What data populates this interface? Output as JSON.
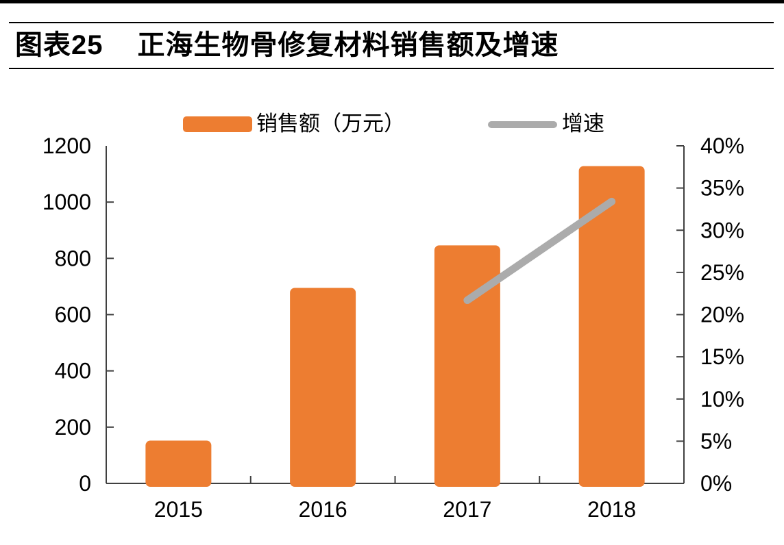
{
  "header": {
    "tag": "图表25",
    "title": "正海生物骨修复材料销售额及增速"
  },
  "legend": {
    "items": [
      {
        "label": "销售额（万元）",
        "type": "bar"
      },
      {
        "label": "增速",
        "type": "line"
      }
    ]
  },
  "colors": {
    "bar": "#ED7D31",
    "line": "#ABABAB",
    "axis": "#404040",
    "text": "#000000",
    "rule": "#000000"
  },
  "chart_data": {
    "type": "combo-bar-line",
    "title": "正海生物骨修复材料销售额及增速",
    "categories": [
      "2015",
      "2016",
      "2017",
      "2018"
    ],
    "series": [
      {
        "name": "销售额（万元）",
        "type": "bar",
        "axis": "left",
        "color": "#ED7D31",
        "values": [
          152,
          695,
          846,
          1128
        ]
      },
      {
        "name": "增速",
        "type": "line",
        "axis": "right",
        "color": "#ABABAB",
        "values": [
          null,
          null,
          21.7,
          33.4
        ]
      }
    ],
    "left_axis": {
      "min": 0,
      "max": 1200,
      "step": 200,
      "ticks": [
        "0",
        "200",
        "400",
        "600",
        "800",
        "1000",
        "1200"
      ]
    },
    "right_axis": {
      "min": 0,
      "max": 40,
      "step": 5,
      "unit": "%",
      "ticks": [
        "0%",
        "5%",
        "10%",
        "15%",
        "20%",
        "25%",
        "30%",
        "35%",
        "40%"
      ]
    },
    "legend_position": "top",
    "grid": false
  }
}
